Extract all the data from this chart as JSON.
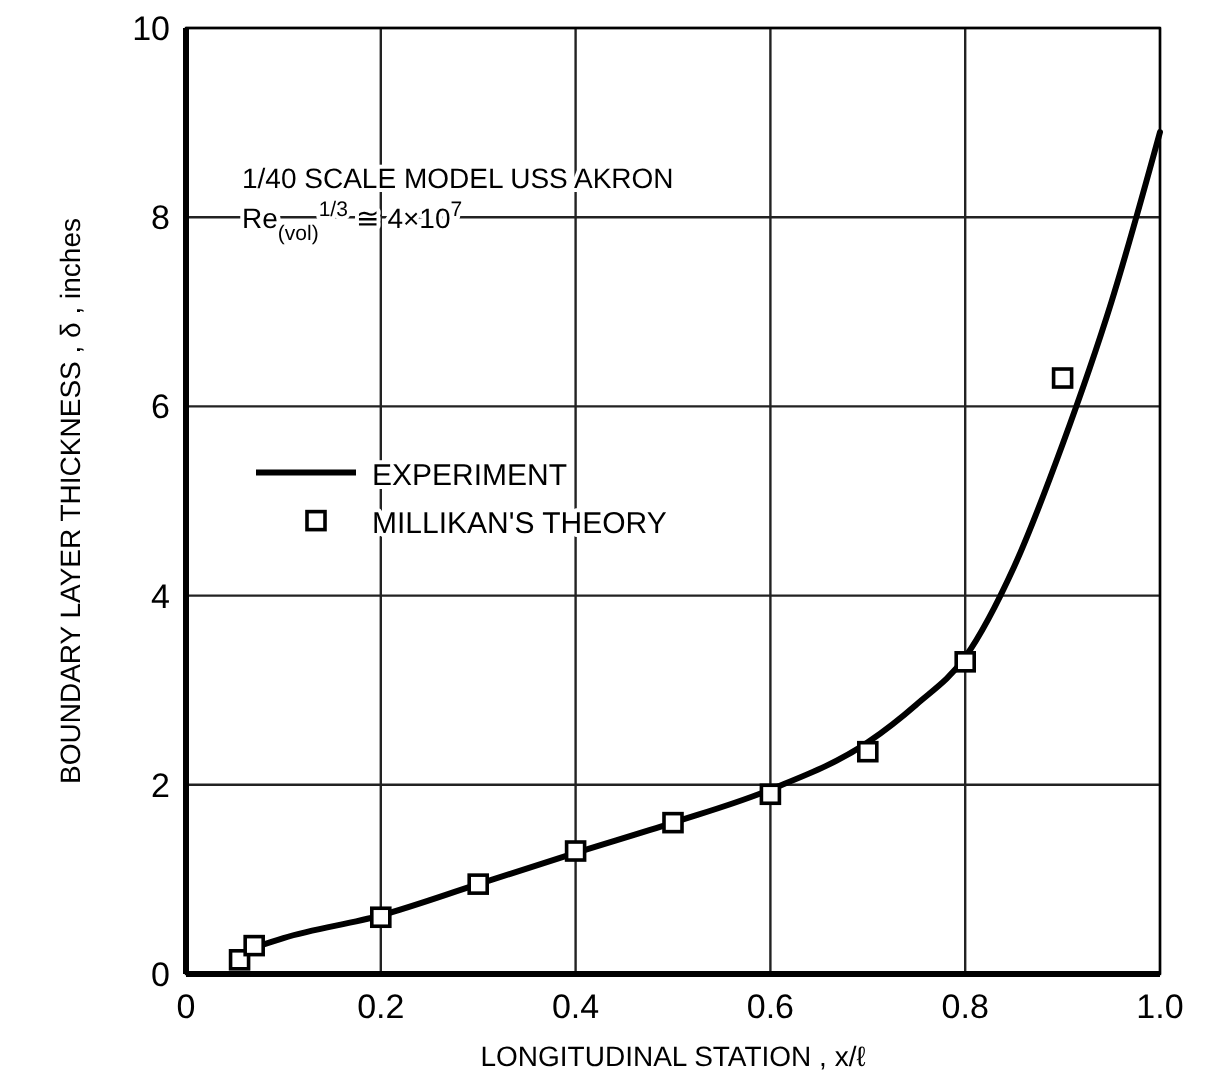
{
  "chart_data": {
    "type": "line",
    "xlabel": "LONGITUDINAL STATION , x/ℓ",
    "ylabel": "BOUNDARY LAYER THICKNESS , δ , inches",
    "annotations": [
      "1/40 SCALE MODEL USS AKRON",
      "Re$_{(vol)}$$^{1/3}$ ≅ 4×10$^{7}$"
    ],
    "xlim": [
      0,
      1.0
    ],
    "ylim": [
      0,
      10
    ],
    "xticks": [
      0,
      0.2,
      0.4,
      0.6,
      0.8,
      {
        "value": 1.0,
        "label": "1.0"
      }
    ],
    "yticks": [
      0,
      2,
      4,
      6,
      8,
      10
    ],
    "grid": true,
    "legend": "left",
    "series": [
      {
        "name": "EXPERIMENT",
        "color": "#000000",
        "marker": "none",
        "line_style": "solid",
        "x": [
          0.07,
          0.1,
          0.2,
          0.3,
          0.4,
          0.5,
          0.6,
          0.7,
          0.75,
          0.8,
          0.85,
          0.9,
          0.95,
          1.0
        ],
        "values": [
          0.28,
          0.38,
          0.62,
          0.95,
          1.28,
          1.6,
          1.95,
          2.45,
          2.85,
          3.35,
          4.3,
          5.6,
          7.1,
          8.9
        ]
      },
      {
        "name": "MILLIKAN'S THEORY",
        "type": "scatter",
        "color": "#000000",
        "marker": "square",
        "x": [
          0.055,
          0.07,
          0.2,
          0.3,
          0.4,
          0.5,
          0.6,
          0.7,
          0.8,
          0.9
        ],
        "values": [
          0.15,
          0.3,
          0.6,
          0.95,
          1.3,
          1.6,
          1.9,
          2.35,
          3.3,
          6.3
        ]
      }
    ]
  }
}
